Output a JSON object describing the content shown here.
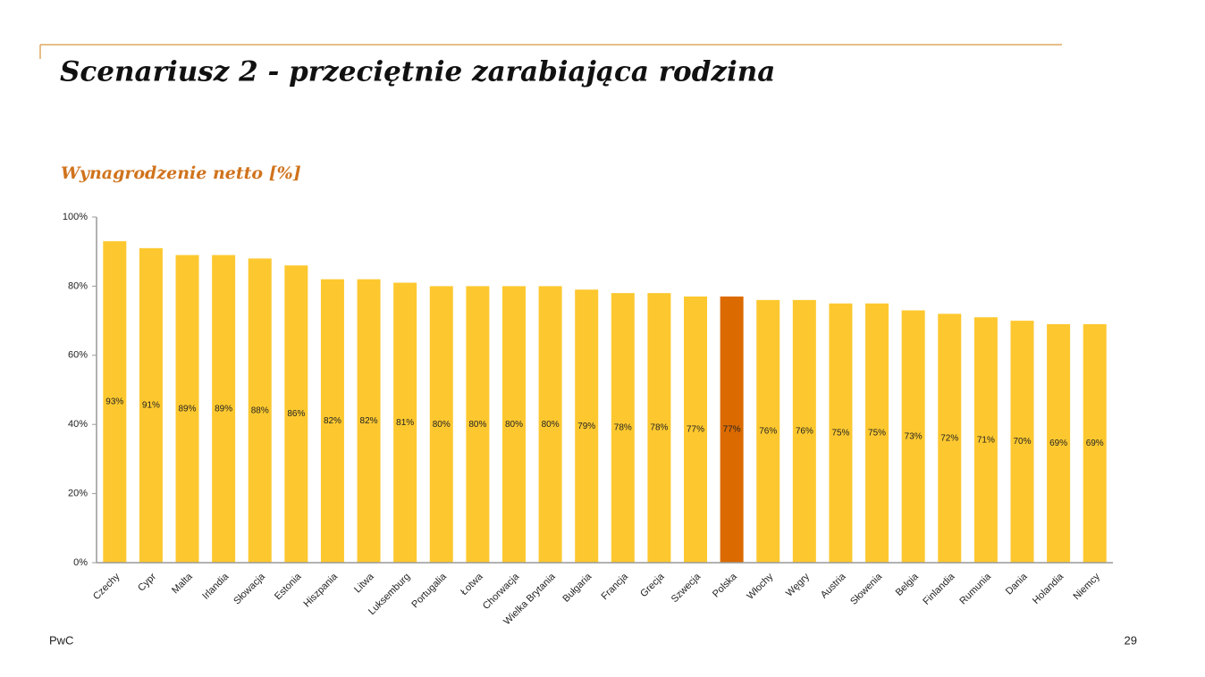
{
  "page": {
    "title": "Scenariusz 2 - przeciętnie zarabiająca rodzina",
    "footer": "PwC",
    "page_number": "29"
  },
  "chart_data": {
    "type": "bar",
    "title": "Wynagrodzenie netto [%]",
    "categories": [
      "Czechy",
      "Cypr",
      "Malta",
      "Irlandia",
      "Słowacja",
      "Estonia",
      "Hiszpania",
      "Litwa",
      "Luksemburg",
      "Portugalia",
      "Łotwa",
      "Chorwacja",
      "Wielka Brytania",
      "Bułgaria",
      "Francja",
      "Grecja",
      "Szwecja",
      "Polska",
      "Włochy",
      "Węgry",
      "Austria",
      "Słowenia",
      "Belgia",
      "Finlandia",
      "Rumunia",
      "Dania",
      "Holandia",
      "Niemcy"
    ],
    "values": [
      93,
      91,
      89,
      89,
      88,
      86,
      82,
      82,
      81,
      80,
      80,
      80,
      80,
      79,
      78,
      78,
      77,
      77,
      76,
      76,
      75,
      75,
      73,
      72,
      71,
      70,
      69,
      69
    ],
    "value_labels": [
      "93%",
      "91%",
      "89%",
      "89%",
      "88%",
      "86%",
      "82%",
      "82%",
      "81%",
      "80%",
      "80%",
      "80%",
      "80%",
      "79%",
      "78%",
      "78%",
      "77%",
      "77%",
      "76%",
      "76%",
      "75%",
      "75%",
      "73%",
      "72%",
      "71%",
      "70%",
      "69%",
      "69%"
    ],
    "colors": [
      "#fdc82f",
      "#fdc82f",
      "#fdc82f",
      "#fdc82f",
      "#fdc82f",
      "#fdc82f",
      "#fdc82f",
      "#fdc82f",
      "#fdc82f",
      "#fdc82f",
      "#fdc82f",
      "#fdc82f",
      "#fdc82f",
      "#fdc82f",
      "#fdc82f",
      "#fdc82f",
      "#fdc82f",
      "#db6a00",
      "#fdc82f",
      "#fdc82f",
      "#fdc82f",
      "#fdc82f",
      "#fdc82f",
      "#fdc82f",
      "#fdc82f",
      "#fdc82f",
      "#fdc82f",
      "#fdc82f"
    ],
    "ylim": [
      0,
      100
    ],
    "yticks": [
      {
        "value": 0,
        "label": "0%"
      },
      {
        "value": 20,
        "label": "20%"
      },
      {
        "value": 40,
        "label": "40%"
      },
      {
        "value": 60,
        "label": "60%"
      },
      {
        "value": 80,
        "label": "80%"
      },
      {
        "value": 100,
        "label": "100%"
      }
    ],
    "grid": false
  }
}
